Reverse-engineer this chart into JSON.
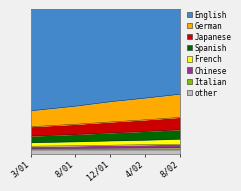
{
  "x_labels": [
    "3/01",
    "8/01",
    "12/01",
    "4/02",
    "8/02"
  ],
  "x_values": [
    0,
    5,
    9,
    13,
    17
  ],
  "series": {
    "other": [
      3.0,
      3.0,
      3.0,
      3.0,
      3.0
    ],
    "Italian": [
      0.8,
      0.9,
      1.0,
      1.1,
      1.2
    ],
    "Chinese": [
      1.5,
      1.7,
      2.0,
      2.2,
      2.5
    ],
    "French": [
      2.5,
      2.8,
      3.0,
      3.2,
      3.5
    ],
    "Spanish": [
      4.5,
      5.0,
      5.5,
      6.0,
      6.5
    ],
    "Japanese": [
      6.5,
      7.0,
      7.5,
      8.0,
      8.5
    ],
    "German": [
      11.0,
      12.5,
      14.0,
      15.0,
      16.0
    ],
    "English": [
      70.2,
      67.1,
      64.0,
      61.5,
      58.8
    ]
  },
  "colors": {
    "other": "#c0c0c0",
    "Italian": "#80c000",
    "Chinese": "#993399",
    "French": "#ffff00",
    "Spanish": "#006600",
    "Japanese": "#cc0000",
    "German": "#ffaa00",
    "English": "#4488cc"
  },
  "legend_order": [
    "English",
    "German",
    "Japanese",
    "Spanish",
    "French",
    "Chinese",
    "Italian",
    "other"
  ],
  "legend_colors": {
    "English": "#4488cc",
    "German": "#ffaa00",
    "Japanese": "#cc0000",
    "Spanish": "#006600",
    "French": "#ffff00",
    "Chinese": "#993399",
    "Italian": "#80c000",
    "other": "#c0c0c0"
  },
  "bg_color": "#f0f0f0",
  "plot_bg": "#ffffff",
  "n_points": 50,
  "x_tick_positions": [
    0,
    5,
    9,
    13,
    17
  ],
  "legend_fontsize": 5.5,
  "tick_fontsize": 6.0
}
